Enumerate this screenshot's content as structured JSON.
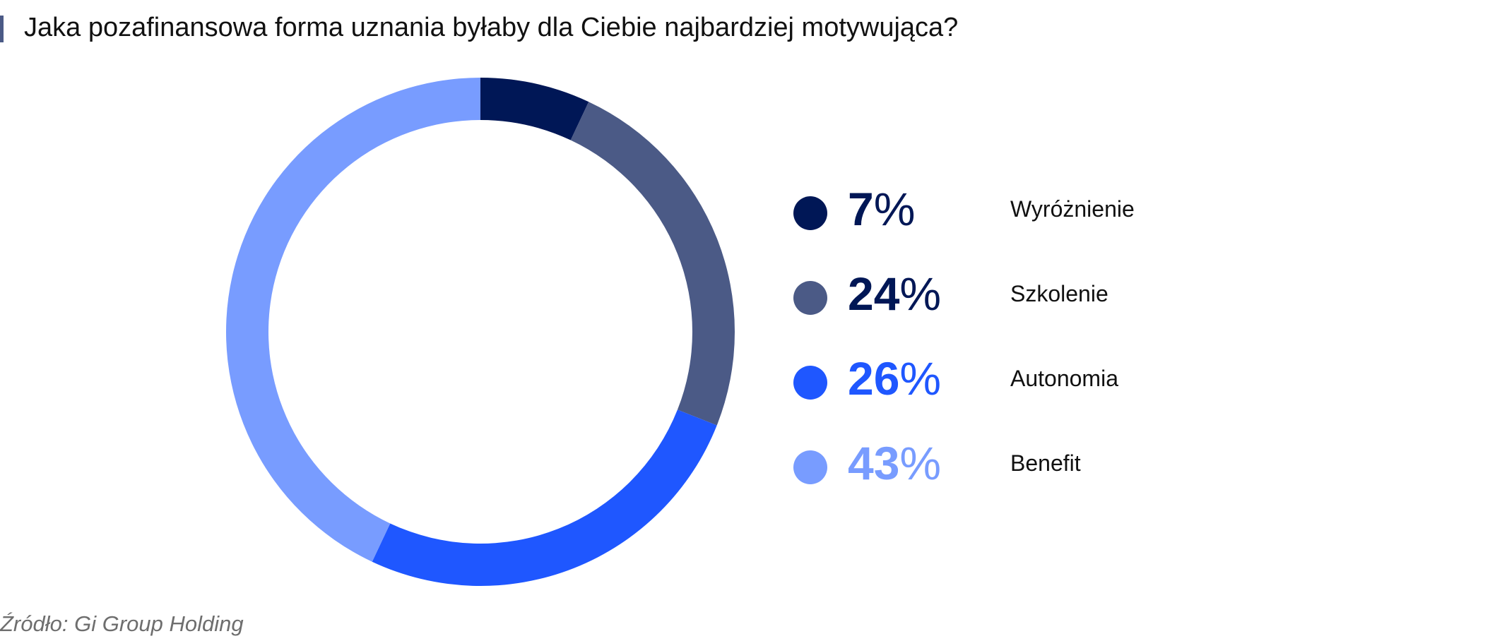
{
  "source": "Źródło: Gi Group Holding",
  "chart_data": {
    "type": "pie",
    "title": "Jaka pozafinansowa forma uznania byłaby dla Ciebie najbardziej motywująca?",
    "donut": true,
    "legend_position": "right",
    "unit": "%",
    "categories": [
      "Wyróżnienie",
      "Szkolenie",
      "Autonomia",
      "Benefit"
    ],
    "values": [
      7,
      24,
      26,
      43
    ],
    "value_labels": [
      "7",
      "24",
      "26",
      "43"
    ],
    "colors": [
      "#001756",
      "#4b5a86",
      "#1f57ff",
      "#789cff"
    ]
  }
}
